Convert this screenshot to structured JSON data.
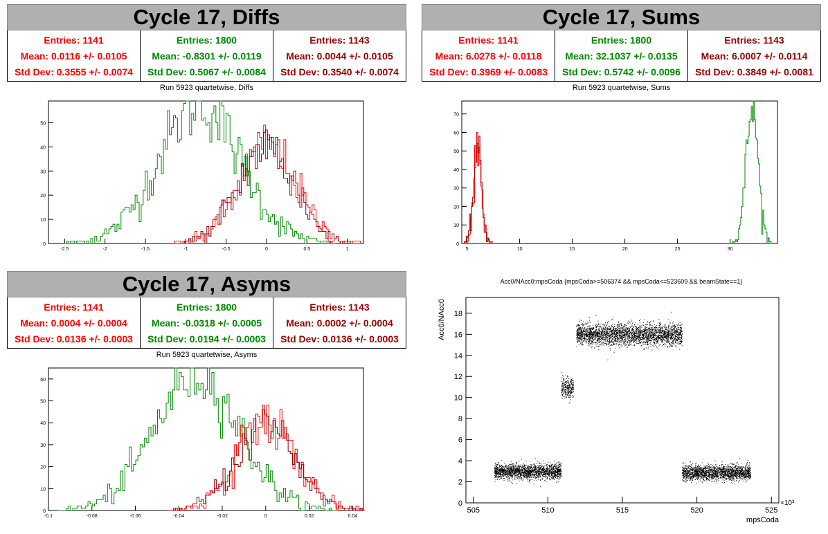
{
  "colors": {
    "red": "#ff0000",
    "green": "#008800",
    "dark_red": "#990000",
    "black": "#000000",
    "title_bg": "#b0b0b0"
  },
  "panels": {
    "diffs": {
      "title": "Cycle 17, Diffs",
      "subtitle": "Run 5923 quartetwise, Diffs",
      "stats": [
        {
          "entries": "Entries: 1141",
          "mean": "Mean: 0.0116 +/- 0.0105",
          "stddev": "Std Dev: 0.3555 +/- 0.0074",
          "color": "#ff0000"
        },
        {
          "entries": "Entries: 1800",
          "mean": "Mean: -0.8301 +/- 0.0119",
          "stddev": "Std Dev: 0.5067 +/- 0.0084",
          "color": "#008800"
        },
        {
          "entries": "Entries: 1143",
          "mean": "Mean: 0.0044 +/- 0.0105",
          "stddev": "Std Dev: 0.3540 +/- 0.0074",
          "color": "#990000"
        }
      ]
    },
    "sums": {
      "title": "Cycle 17, Sums",
      "subtitle": "Run 5923 quartetwise, Sums",
      "stats": [
        {
          "entries": "Entries: 1141",
          "mean": "Mean: 6.0278 +/- 0.0118",
          "stddev": "Std Dev: 0.3969 +/- 0.0083",
          "color": "#ff0000"
        },
        {
          "entries": "Entries: 1800",
          "mean": "Mean: 32.1037 +/- 0.0135",
          "stddev": "Std Dev: 0.5742 +/- 0.0096",
          "color": "#008800"
        },
        {
          "entries": "Entries: 1143",
          "mean": "Mean: 6.0007 +/- 0.0114",
          "stddev": "Std Dev: 0.3849 +/- 0.0081",
          "color": "#990000"
        }
      ]
    },
    "asyms": {
      "title": "Cycle 17, Asyms",
      "subtitle": "Run 5923 quartetwise, Asyms",
      "stats": [
        {
          "entries": "Entries: 1141",
          "mean": "Mean: 0.0004 +/- 0.0004",
          "stddev": "Std Dev: 0.0136 +/- 0.0003",
          "color": "#ff0000"
        },
        {
          "entries": "Entries: 1800",
          "mean": "Mean: -0.0318 +/- 0.0005",
          "stddev": "Std Dev: 0.0194 +/- 0.0003",
          "color": "#008800"
        },
        {
          "entries": "Entries: 1143",
          "mean": "Mean: 0.0002 +/- 0.0004",
          "stddev": "Std Dev: 0.0136 +/- 0.0003",
          "color": "#990000"
        }
      ]
    },
    "scatter": {
      "title": "Acc0/NAcc0:mpsCoda {mpsCoda>=506374 && mpsCoda<=523609 && beamState==1}",
      "ylabel": "Acc0/NAcc0",
      "xlabel": "mpsCoda",
      "exponent": "×10³"
    }
  },
  "chart_data": [
    {
      "type": "bar",
      "name": "diffs",
      "xlim": [
        -2.7,
        1.2
      ],
      "ylim": [
        0,
        59
      ],
      "xticks": [
        -2.5,
        -2,
        -1.5,
        -1,
        -0.5,
        0,
        0.5,
        1
      ],
      "xtick_labels": [
        "-2.5",
        "-2",
        "-1.5",
        "-1",
        "-0.5",
        "0",
        "0.5",
        "1"
      ],
      "yticks": [
        0,
        10,
        20,
        30,
        40,
        50
      ],
      "ytick_labels": [
        "0",
        "10",
        "20",
        "30",
        "40",
        "50"
      ],
      "series": [
        {
          "color": "#008800",
          "mean": -0.8301,
          "std": 0.5067,
          "peak": 57,
          "bin": 0.025
        },
        {
          "color": "#ff0000",
          "mean": 0.0116,
          "std": 0.3555,
          "peak": 40,
          "bin": 0.025
        },
        {
          "color": "#990000",
          "mean": 0.0044,
          "std": 0.354,
          "peak": 40,
          "bin": 0.025
        }
      ]
    },
    {
      "type": "bar",
      "name": "sums",
      "xlim": [
        4.5,
        34.5
      ],
      "ylim": [
        0,
        77
      ],
      "xticks": [
        5,
        10,
        15,
        20,
        25,
        30
      ],
      "xtick_labels": [
        "5",
        "10",
        "15",
        "20",
        "25",
        "30"
      ],
      "yticks": [
        0,
        10,
        20,
        30,
        40,
        50,
        60,
        70
      ],
      "ytick_labels": [
        "0",
        "10",
        "20",
        "30",
        "40",
        "50",
        "60",
        "70"
      ],
      "series": [
        {
          "color": "#008800",
          "mean": 32.1037,
          "std": 0.5742,
          "peak": 74,
          "bin": 0.1
        },
        {
          "color": "#ff0000",
          "mean": 6.0278,
          "std": 0.3969,
          "peak": 50,
          "bin": 0.1
        },
        {
          "color": "#990000",
          "mean": 6.0007,
          "std": 0.3849,
          "peak": 50,
          "bin": 0.1
        }
      ]
    },
    {
      "type": "bar",
      "name": "asyms",
      "xlim": [
        -0.1,
        0.045
      ],
      "ylim": [
        0,
        65
      ],
      "xticks": [
        -0.1,
        -0.08,
        -0.06,
        -0.04,
        -0.02,
        0,
        0.02,
        0.04
      ],
      "xtick_labels": [
        "-0.1",
        "-0.08",
        "-0.06",
        "-0.04",
        "-0.02",
        "0",
        "0.02",
        "0.04"
      ],
      "yticks": [
        0,
        10,
        20,
        30,
        40,
        50,
        60
      ],
      "ytick_labels": [
        "0",
        "10",
        "20",
        "30",
        "40",
        "50",
        "60"
      ],
      "series": [
        {
          "color": "#008800",
          "mean": -0.0318,
          "std": 0.0194,
          "peak": 62,
          "bin": 0.001
        },
        {
          "color": "#ff0000",
          "mean": 0.0004,
          "std": 0.0136,
          "peak": 40,
          "bin": 0.001
        },
        {
          "color": "#990000",
          "mean": 0.0002,
          "std": 0.0136,
          "peak": 40,
          "bin": 0.001
        }
      ]
    },
    {
      "type": "scatter",
      "name": "scatter",
      "xlim": [
        504.5,
        525.5
      ],
      "ylim": [
        0,
        19.5
      ],
      "xticks": [
        505,
        510,
        515,
        520,
        525
      ],
      "xtick_labels": [
        "505",
        "510",
        "515",
        "520",
        "525"
      ],
      "yticks": [
        0,
        2,
        4,
        6,
        8,
        10,
        12,
        14,
        16,
        18
      ],
      "ytick_labels": [
        "0",
        "2",
        "4",
        "6",
        "8",
        "10",
        "12",
        "14",
        "16",
        "18"
      ],
      "clusters": [
        {
          "x": [
            506.4,
            510.9
          ],
          "y_center": 3.0,
          "y_spread": 0.35,
          "count": 2000
        },
        {
          "x": [
            510.9,
            511.7
          ],
          "y_center": 10.9,
          "y_spread": 0.5,
          "count": 300
        },
        {
          "x": [
            511.9,
            519.0
          ],
          "y_center": 16.0,
          "y_spread": 0.5,
          "count": 3000
        },
        {
          "x": [
            519.0,
            523.6
          ],
          "y_center": 2.9,
          "y_spread": 0.35,
          "count": 2000
        }
      ]
    }
  ]
}
